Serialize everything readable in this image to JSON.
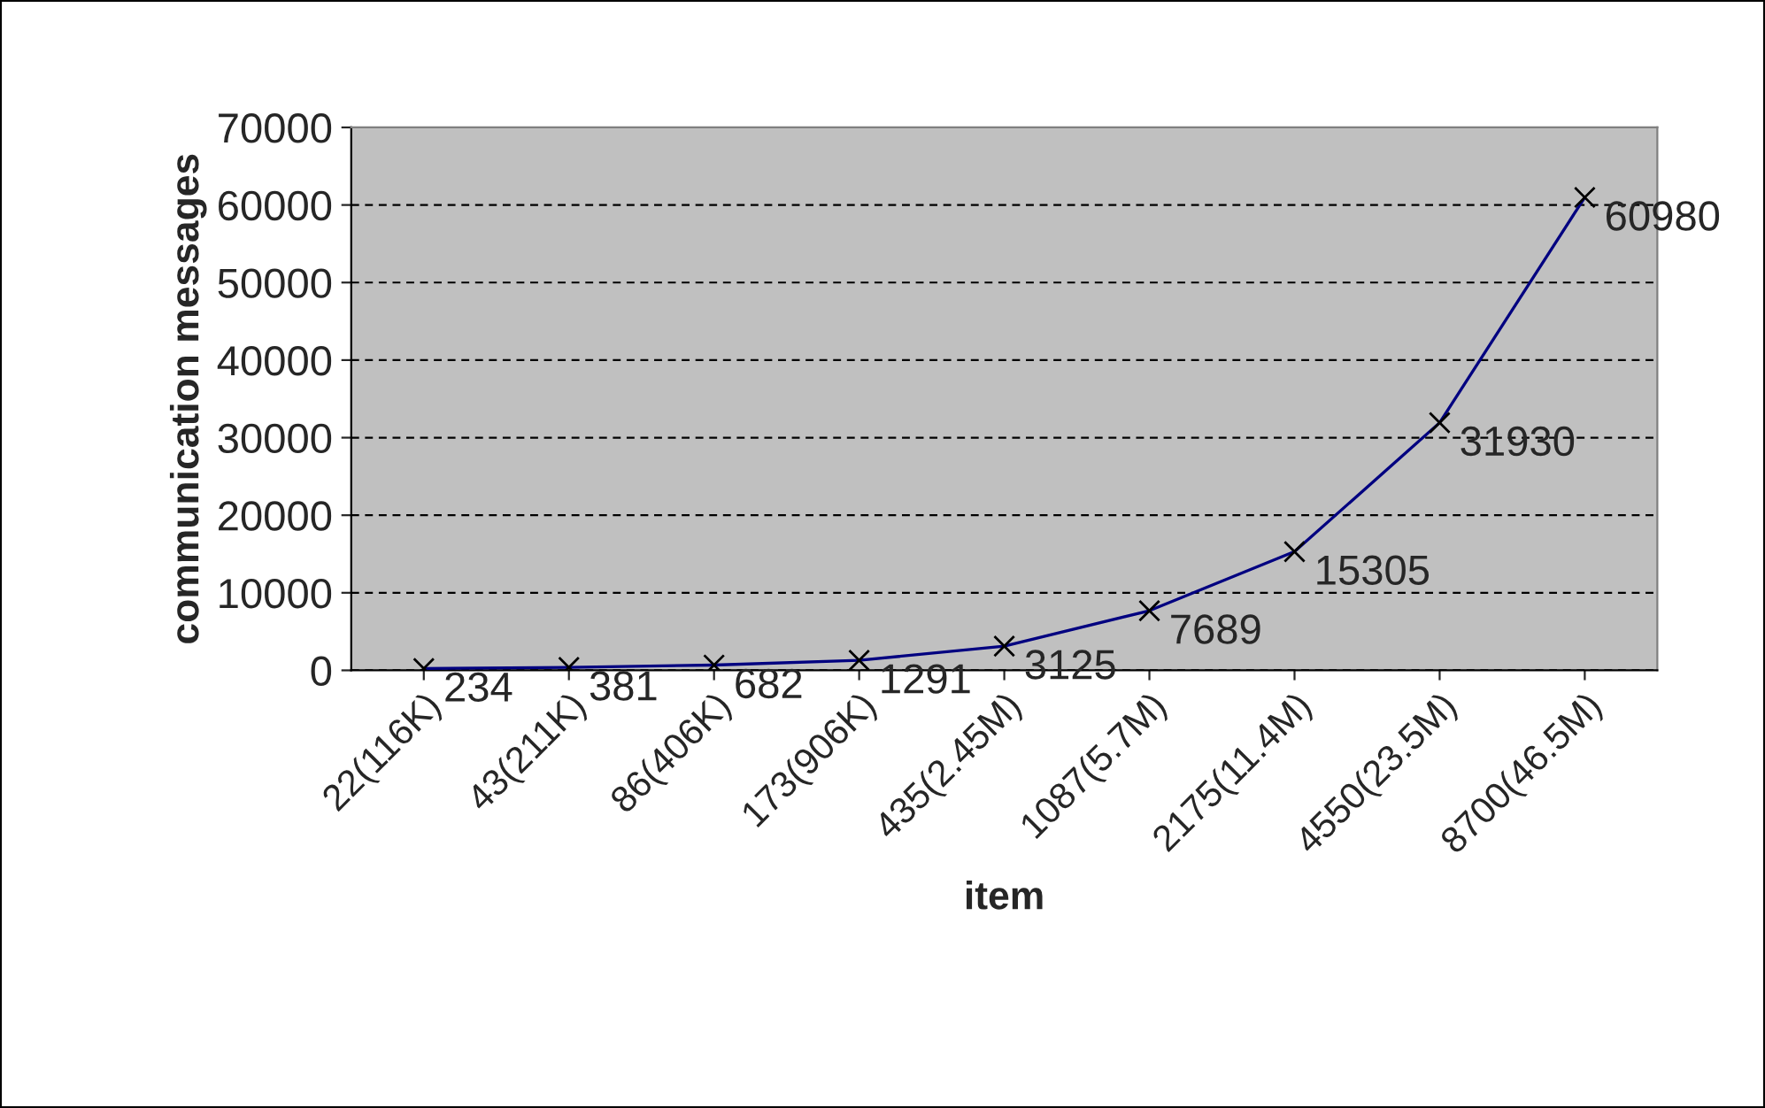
{
  "chart_data": {
    "type": "line",
    "xlabel": "item",
    "ylabel": "communication messages",
    "categories": [
      "22(116K)",
      "43(211K)",
      "86(406K)",
      "173(906K)",
      "435(2.45M)",
      "1087(5.7M)",
      "2175(11.4M)",
      "4550(23.5M)",
      "8700(46.5M)"
    ],
    "series": [
      {
        "color": "#000080",
        "values": [
          234,
          381,
          682,
          1291,
          3125,
          7689,
          15305,
          31930,
          60980
        ]
      }
    ],
    "ylim": [
      0,
      70000
    ],
    "yticks": [
      0,
      10000,
      20000,
      30000,
      40000,
      50000,
      60000,
      70000
    ],
    "grid": "y",
    "marker": "cross",
    "line_style": "solid",
    "data_labels": true
  }
}
